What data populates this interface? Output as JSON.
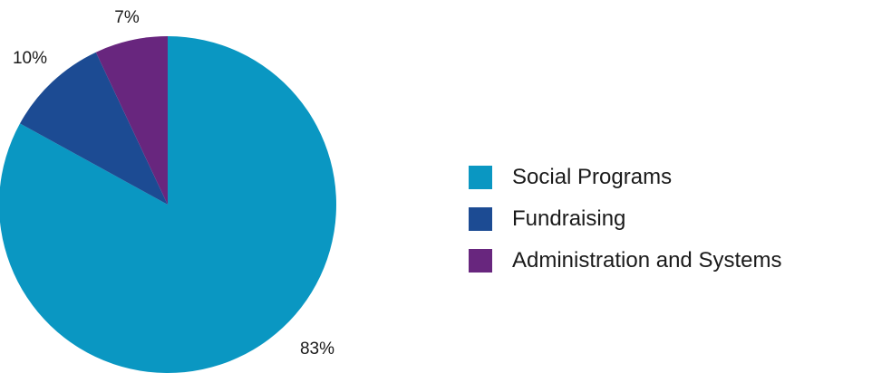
{
  "chart_data": {
    "type": "pie",
    "title": "",
    "categories": [
      "Social Programs",
      "Fundraising",
      "Administration and Systems"
    ],
    "values": [
      83,
      10,
      7
    ],
    "labels": [
      "83%",
      "10%",
      "7%"
    ],
    "colors": [
      "#0a97c2",
      "#1c4b93",
      "#68267e"
    ],
    "start_angle_deg": 0,
    "direction": "clockwise",
    "legend_position": "right"
  },
  "legend": {
    "items": [
      {
        "label": "Social Programs",
        "color": "#0a97c2"
      },
      {
        "label": "Fundraising",
        "color": "#1c4b93"
      },
      {
        "label": "Administration and Systems",
        "color": "#68267e"
      }
    ]
  }
}
